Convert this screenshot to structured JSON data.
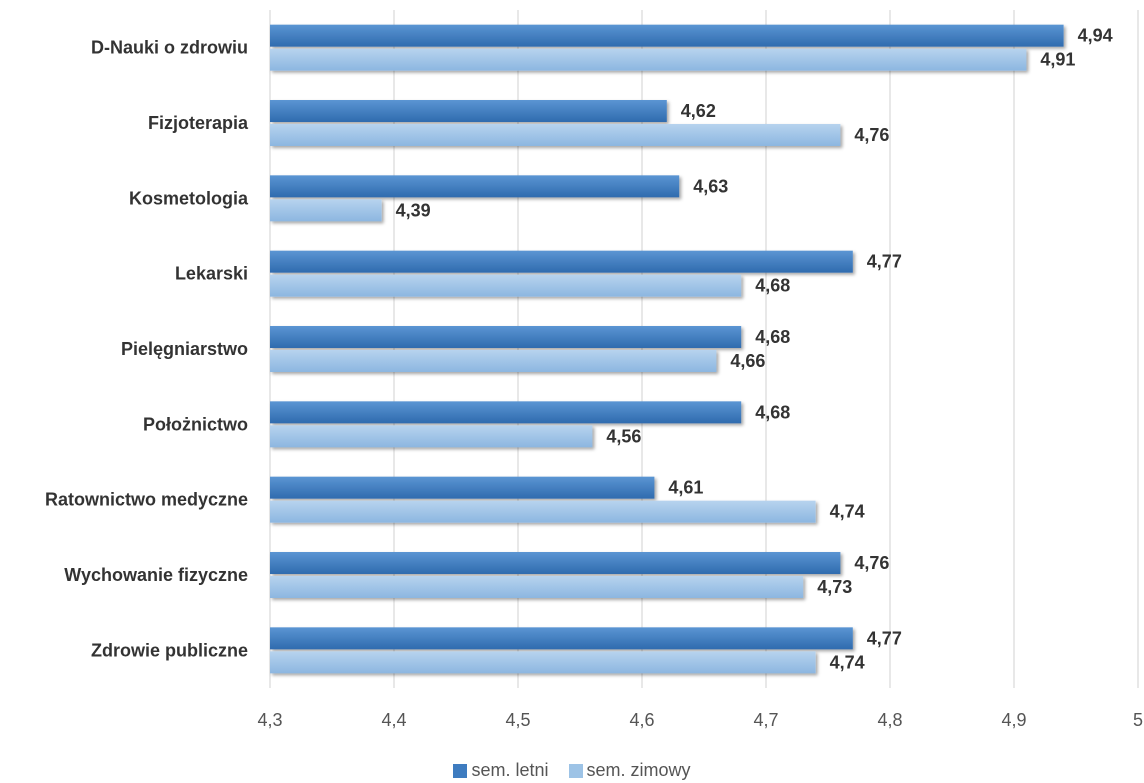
{
  "chart_data": {
    "type": "bar",
    "orientation": "horizontal",
    "categories": [
      "D-Nauki o zdrowiu",
      "Fizjoterapia",
      "Kosmetologia",
      "Lekarski",
      "Pielęgniarstwo",
      "Położnictwo",
      "Ratownictwo medyczne",
      "Wychowanie fizyczne",
      "Zdrowie publiczne"
    ],
    "series": [
      {
        "name": "sem. letni",
        "color": "#3E7CC0",
        "values": [
          4.94,
          4.62,
          4.63,
          4.77,
          4.68,
          4.68,
          4.61,
          4.76,
          4.77
        ],
        "labels": [
          "4,94",
          "4,62",
          "4,63",
          "4,77",
          "4,68",
          "4,68",
          "4,61",
          "4,76",
          "4,77"
        ]
      },
      {
        "name": "sem. zimowy",
        "color": "#9DC3E6",
        "values": [
          4.91,
          4.76,
          4.39,
          4.68,
          4.66,
          4.56,
          4.74,
          4.73,
          4.74
        ],
        "labels": [
          "4,91",
          "4,76",
          "4,39",
          "4,68",
          "4,66",
          "4,56",
          "4,74",
          "4,73",
          "4,74"
        ]
      }
    ],
    "xlim": [
      4.3,
      5
    ],
    "xticks": [
      4.3,
      4.4,
      4.5,
      4.6,
      4.7,
      4.8,
      4.9,
      5
    ],
    "xtick_labels": [
      "4,3",
      "4,4",
      "4,5",
      "4,6",
      "4,7",
      "4,8",
      "4,9",
      "5"
    ],
    "grid": true,
    "legend_position": "bottom"
  }
}
